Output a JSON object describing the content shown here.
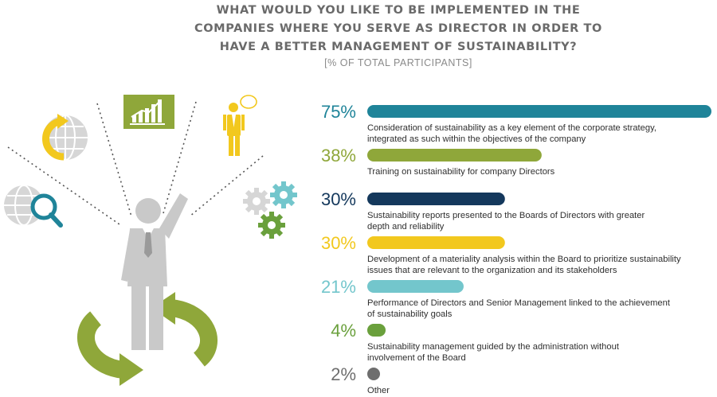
{
  "title_lines": [
    "WHAT WOULD YOU LIKE TO BE IMPLEMENTED IN THE",
    "COMPANIES WHERE YOU SERVE AS DIRECTOR IN ORDER TO",
    "HAVE A BETTER MANAGEMENT OF SUSTAINABILITY?"
  ],
  "subtitle": "[% OF TOTAL PARTICIPANTS]",
  "chart_data": {
    "type": "bar",
    "orientation": "horizontal",
    "unit": "%",
    "xlim": [
      0,
      75
    ],
    "grid": false,
    "legend": "none",
    "rows": [
      {
        "value": 75,
        "label": "75%",
        "color": "#1f8499",
        "lines": [
          "Consideration of sustainability as a key element of the corporate strategy,",
          "integrated as such within the objectives of the company"
        ]
      },
      {
        "value": 38,
        "label": "38%",
        "color": "#8fa73a",
        "lines": [
          "Training on sustainability for company Directors"
        ]
      },
      {
        "value": 30,
        "label": "30%",
        "color": "#14385c",
        "lines": [
          "Sustainability reports presented to the Boards of Directors with greater",
          "depth and reliability"
        ]
      },
      {
        "value": 30,
        "label": "30%",
        "color": "#f2c81e",
        "lines": [
          "Development of a materiality analysis within the Board to prioritize sustainability",
          "issues that are relevant to the organization and its stakeholders"
        ]
      },
      {
        "value": 21,
        "label": "21%",
        "color": "#73c6cc",
        "lines": [
          "Performance of Directors and Senior Management linked to the achievement",
          "of sustainability goals"
        ]
      },
      {
        "value": 4,
        "label": "4%",
        "color": "#6aa03c",
        "lines": [
          "Sustainability management guided by the administration without",
          "involvement of the Board"
        ]
      },
      {
        "value": 2,
        "label": "2%",
        "color": "#6e6e6e",
        "lines": [
          "Other"
        ]
      }
    ]
  },
  "icons": {
    "chart_board": "growth-chart-board-icon",
    "person_idea": "person-with-speech-bubble-icon",
    "globe_refresh": "globe-refresh-icon",
    "globe_search": "globe-magnifier-icon",
    "gears": "gears-icon",
    "businessman": "businessman-raising-arm-icon",
    "cycle_arrows": "circular-arrows-icon"
  },
  "colors": {
    "green": "#8fa73a",
    "teal": "#1f8499",
    "yellow": "#f2c81e",
    "grey": "#c9c9c9",
    "lightblue": "#73c6cc"
  }
}
